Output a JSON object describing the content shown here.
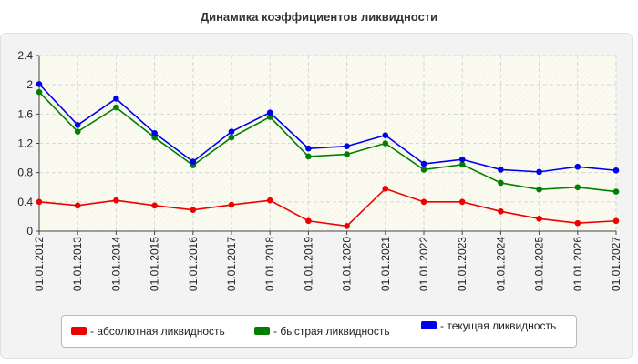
{
  "title": "Динамика коэффициентов ликвидности",
  "chart_data": {
    "type": "line",
    "title": "Динамика коэффициентов ликвидности",
    "xlabel": "",
    "ylabel": "",
    "categories": [
      "01.01.2012",
      "01.01.2013",
      "01.01.2014",
      "01.01.2015",
      "01.01.2016",
      "01.01.2017",
      "01.01.2018",
      "01.01.2019",
      "01.01.2020",
      "01.01.2021",
      "01.01.2022",
      "01.01.2023",
      "01.01.2024",
      "01.01.2025",
      "01.01.2026",
      "01.01.2027"
    ],
    "ylim": [
      0,
      2.4
    ],
    "yticks": [
      "0",
      "0.4",
      "0.8",
      "1.2",
      "1.6",
      "2",
      "2.4"
    ],
    "grid": true,
    "legend_position": "bottom",
    "series": [
      {
        "name": "- абсолютная ликвидность",
        "color": "#ee0000",
        "values": [
          0.4,
          0.35,
          0.42,
          0.35,
          0.29,
          0.36,
          0.42,
          0.14,
          0.07,
          0.58,
          0.4,
          0.4,
          0.27,
          0.17,
          0.11,
          0.14
        ]
      },
      {
        "name": "- быстрая ликвидность",
        "color": "#008000",
        "values": [
          1.9,
          1.36,
          1.69,
          1.28,
          0.9,
          1.28,
          1.56,
          1.02,
          1.05,
          1.2,
          0.84,
          0.91,
          0.66,
          0.57,
          0.6,
          0.54
        ]
      },
      {
        "name": "- текущая ликвидность",
        "color": "#0000ee",
        "values": [
          2.01,
          1.45,
          1.81,
          1.34,
          0.95,
          1.36,
          1.62,
          1.13,
          1.16,
          1.31,
          0.92,
          0.98,
          0.84,
          0.81,
          0.88,
          0.83
        ]
      }
    ]
  }
}
